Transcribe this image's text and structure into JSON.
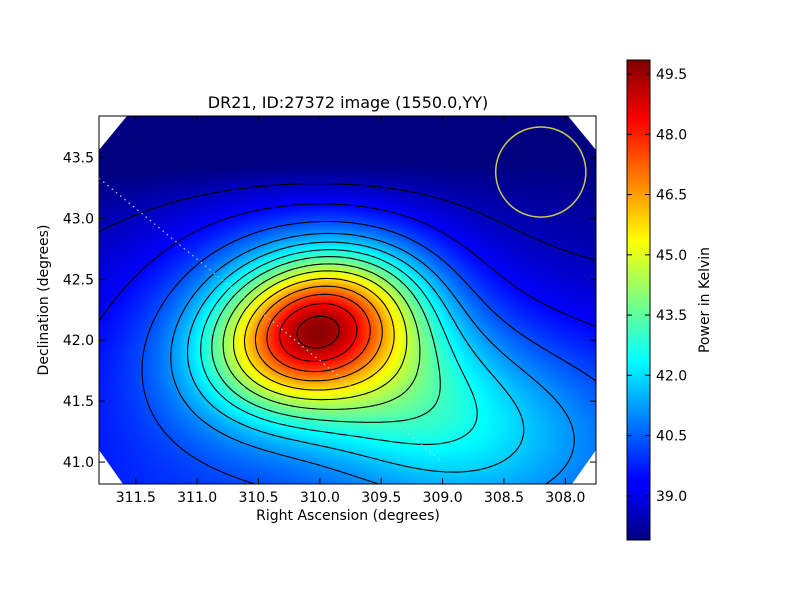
{
  "chart_data": {
    "type": "heatmap",
    "title": "DR21, ID:27372 image (1550.0,YY)",
    "xlabel": "Right Ascension (degrees)",
    "ylabel": "Declination (degrees)",
    "colorbar_label": "Power in Kelvin",
    "xlim": [
      311.8,
      307.75
    ],
    "ylim": [
      40.82,
      43.84
    ],
    "x_ticks": [
      "311.5",
      "311.0",
      "310.5",
      "310.0",
      "309.5",
      "309.0",
      "308.5",
      "308.0"
    ],
    "x_tick_values": [
      311.5,
      311.0,
      310.5,
      310.0,
      309.5,
      309.0,
      308.5,
      308.0
    ],
    "y_ticks": [
      "41.0",
      "41.5",
      "42.0",
      "42.5",
      "43.0",
      "43.5"
    ],
    "y_tick_values": [
      41.0,
      41.5,
      42.0,
      42.5,
      43.0,
      43.5
    ],
    "colorbar_range": [
      37.9,
      49.85
    ],
    "colorbar_ticks": [
      "39.0",
      "40.5",
      "42.0",
      "43.5",
      "45.0",
      "46.5",
      "48.0",
      "49.5"
    ],
    "colorbar_tick_values": [
      39.0,
      40.5,
      42.0,
      43.5,
      45.0,
      46.5,
      48.0,
      49.5
    ],
    "colormap": "jet",
    "peak": {
      "ra": 310.05,
      "dec": 42.1,
      "value": 49.85
    },
    "contour_levels": [
      38.6,
      39.4,
      40.3,
      41.1,
      41.8,
      42.5,
      43.2,
      44.0,
      44.8,
      45.7,
      46.6,
      47.5,
      48.4,
      49.3
    ],
    "beam_circle": {
      "ra": 308.2,
      "dec": 43.38,
      "radius_deg": 0.37,
      "color": "#c8c850"
    },
    "guide_line": {
      "points": [
        [
          311.8,
          43.33
        ],
        [
          309.0,
          41.0
        ]
      ],
      "color": "#a0d8f0",
      "style": "dotted"
    }
  }
}
